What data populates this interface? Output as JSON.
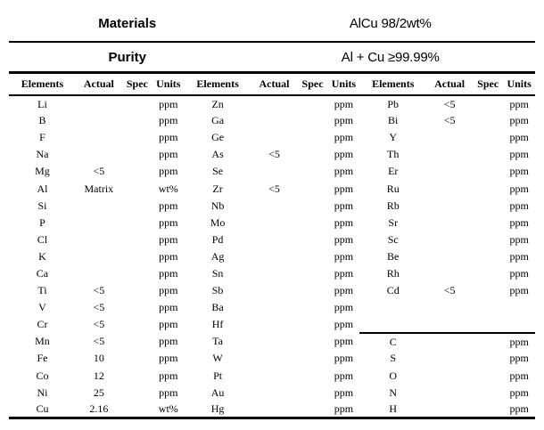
{
  "header": {
    "materials_label": "Materials",
    "materials_value": "AlCu 98/2wt%",
    "purity_label": "Purity",
    "purity_value": "Al + Cu ≥99.99%"
  },
  "table": {
    "column_headers": [
      "Elements",
      "Actual",
      "Spec",
      "Units",
      "Elements",
      "Actual",
      "Spec",
      "Units",
      "Elements",
      "Actual",
      "Spec",
      "Units"
    ],
    "group3_rule_above_element": "C",
    "rows": [
      [
        [
          "Li",
          "",
          "",
          "ppm"
        ],
        [
          "Zn",
          "",
          "",
          "ppm"
        ],
        [
          "Pb",
          "<5",
          "",
          "ppm"
        ]
      ],
      [
        [
          "B",
          "",
          "",
          "ppm"
        ],
        [
          "Ga",
          "",
          "",
          "ppm"
        ],
        [
          "Bi",
          "<5",
          "",
          "ppm"
        ]
      ],
      [
        [
          "F",
          "",
          "",
          "ppm"
        ],
        [
          "Ge",
          "",
          "",
          "ppm"
        ],
        [
          "Y",
          "",
          "",
          "ppm"
        ]
      ],
      [
        [
          "Na",
          "",
          "",
          "ppm"
        ],
        [
          "As",
          "<5",
          "",
          "ppm"
        ],
        [
          "Th",
          "",
          "",
          "ppm"
        ]
      ],
      [
        [
          "Mg",
          "<5",
          "",
          "ppm"
        ],
        [
          "Se",
          "",
          "",
          "ppm"
        ],
        [
          "Er",
          "",
          "",
          "ppm"
        ]
      ],
      [
        [
          "Al",
          "Matrix",
          "",
          "wt%"
        ],
        [
          "Zr",
          "<5",
          "",
          "ppm"
        ],
        [
          "Ru",
          "",
          "",
          "ppm"
        ]
      ],
      [
        [
          "Si",
          "",
          "",
          "ppm"
        ],
        [
          "Nb",
          "",
          "",
          "ppm"
        ],
        [
          "Rb",
          "",
          "",
          "ppm"
        ]
      ],
      [
        [
          "P",
          "",
          "",
          "ppm"
        ],
        [
          "Mo",
          "",
          "",
          "ppm"
        ],
        [
          "Sr",
          "",
          "",
          "ppm"
        ]
      ],
      [
        [
          "Cl",
          "",
          "",
          "ppm"
        ],
        [
          "Pd",
          "",
          "",
          "ppm"
        ],
        [
          "Sc",
          "",
          "",
          "ppm"
        ]
      ],
      [
        [
          "K",
          "",
          "",
          "ppm"
        ],
        [
          "Ag",
          "",
          "",
          "ppm"
        ],
        [
          "Be",
          "",
          "",
          "ppm"
        ]
      ],
      [
        [
          "Ca",
          "",
          "",
          "ppm"
        ],
        [
          "Sn",
          "",
          "",
          "ppm"
        ],
        [
          "Rh",
          "",
          "",
          "ppm"
        ]
      ],
      [
        [
          "Ti",
          "<5",
          "",
          "ppm"
        ],
        [
          "Sb",
          "",
          "",
          "ppm"
        ],
        [
          "Cd",
          "<5",
          "",
          "ppm"
        ]
      ],
      [
        [
          "V",
          "<5",
          "",
          "ppm"
        ],
        [
          "Ba",
          "",
          "",
          "ppm"
        ],
        [
          "",
          "",
          "",
          ""
        ]
      ],
      [
        [
          "Cr",
          "<5",
          "",
          "ppm"
        ],
        [
          "Hf",
          "",
          "",
          "ppm"
        ],
        [
          "",
          "",
          "",
          ""
        ]
      ],
      [
        [
          "Mn",
          "<5",
          "",
          "ppm"
        ],
        [
          "Ta",
          "",
          "",
          "ppm"
        ],
        [
          "C",
          "",
          "",
          "ppm"
        ]
      ],
      [
        [
          "Fe",
          "10",
          "",
          "ppm"
        ],
        [
          "W",
          "",
          "",
          "ppm"
        ],
        [
          "S",
          "",
          "",
          "ppm"
        ]
      ],
      [
        [
          "Co",
          "12",
          "",
          "ppm"
        ],
        [
          "Pt",
          "",
          "",
          "ppm"
        ],
        [
          "O",
          "",
          "",
          "ppm"
        ]
      ],
      [
        [
          "Ni",
          "25",
          "",
          "ppm"
        ],
        [
          "Au",
          "",
          "",
          "ppm"
        ],
        [
          "N",
          "",
          "",
          "ppm"
        ]
      ],
      [
        [
          "Cu",
          "2.16",
          "",
          "wt%"
        ],
        [
          "Hg",
          "",
          "",
          "ppm"
        ],
        [
          "H",
          "",
          "",
          "ppm"
        ]
      ]
    ]
  }
}
